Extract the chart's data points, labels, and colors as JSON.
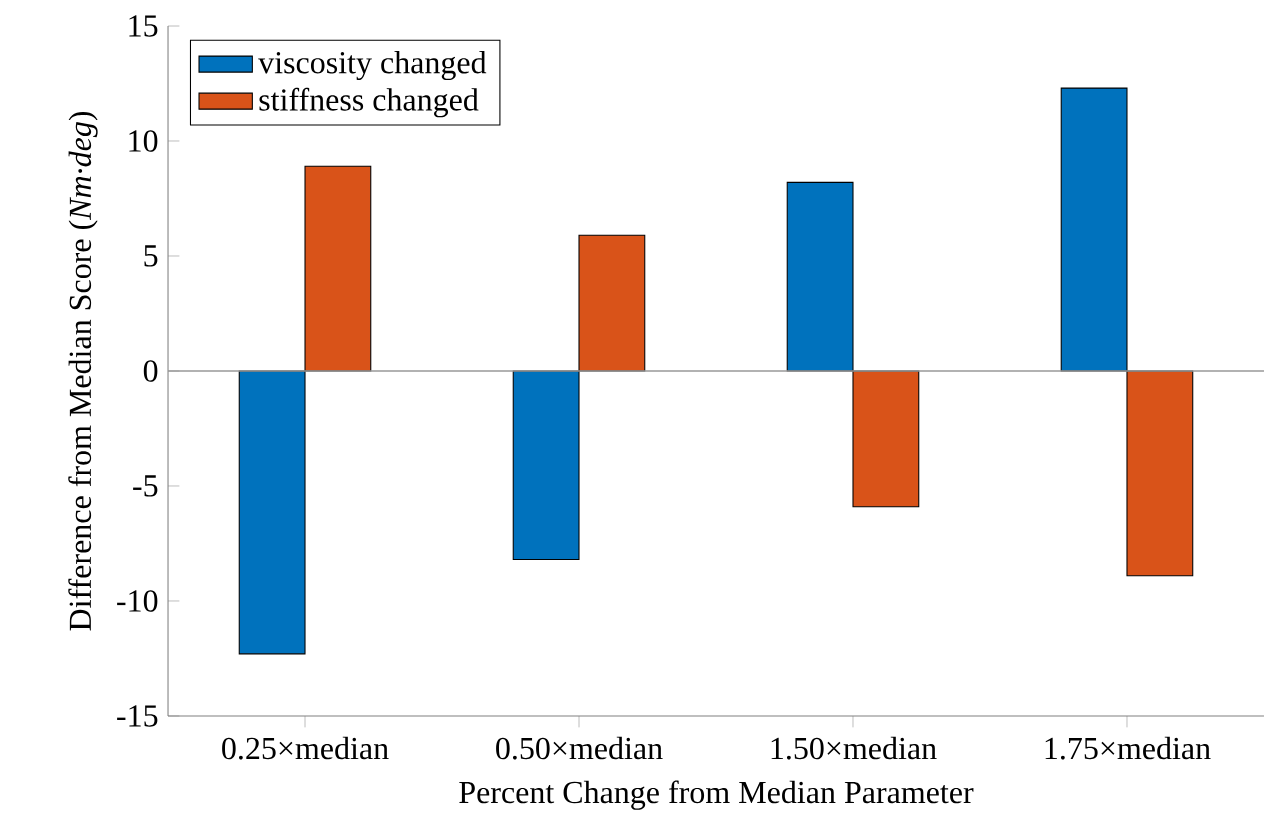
{
  "chart_data": {
    "type": "bar",
    "xlabel": "Percent Change from Median Parameter",
    "ylabel": "Difference from Median Score (*Nm·deg*)",
    "categories": [
      "0.25×median",
      "0.50×median",
      "1.50×median",
      "1.75×median"
    ],
    "series": [
      {
        "name": "viscosity changed",
        "color": "#0072bd",
        "values": [
          -12.3,
          -8.2,
          8.2,
          12.3
        ]
      },
      {
        "name": "stiffness changed",
        "color": "#d95319",
        "values": [
          8.9,
          5.9,
          -5.9,
          -8.9
        ]
      }
    ],
    "ylim": [
      -15,
      15
    ],
    "yticks": [
      -15,
      -10,
      -5,
      0,
      5,
      10,
      15
    ],
    "ref_lines": [
      {
        "axis": "y",
        "value": 0,
        "color": "#999999"
      }
    ],
    "legend": "top left",
    "grid": false
  }
}
